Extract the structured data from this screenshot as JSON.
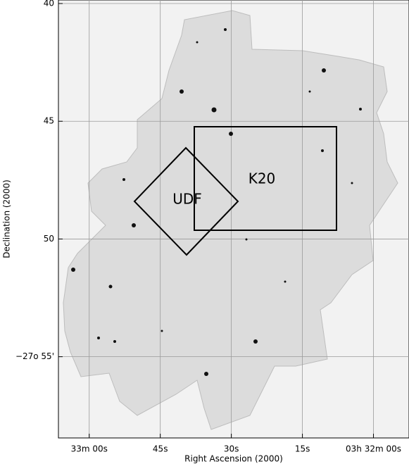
{
  "chart_data": {
    "type": "sky-map",
    "xlabel": "Right Ascension (2000)",
    "ylabel": "Declination (2000)",
    "xlim": [
      66.5,
      -7.5
    ],
    "ylim": [
      39.85,
      58.45
    ],
    "xticks": [
      {
        "value": 60,
        "label": "33m 00s"
      },
      {
        "value": 45,
        "label": "45s"
      },
      {
        "value": 30,
        "label": "30s"
      },
      {
        "value": 15,
        "label": "15s"
      },
      {
        "value": 0,
        "label": "03h 32m 00s"
      }
    ],
    "yticks": [
      40,
      45,
      50,
      {
        "value": 55,
        "label": "−27o 55'"
      }
    ],
    "grid": true,
    "annotations": [
      "K20",
      "UDF"
    ]
  }
}
